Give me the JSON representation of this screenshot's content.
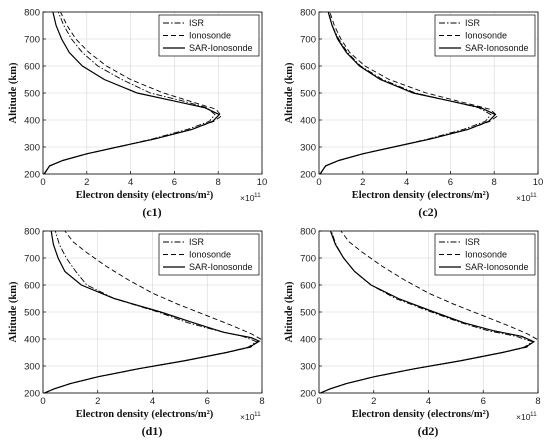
{
  "chart_data": [
    {
      "panel": "(c1)",
      "type": "line",
      "xlabel": "Electron density (electrons/m²)",
      "ylabel": "Altitude (km)",
      "x_multiplier": "×10",
      "x_multiplier_exp": "11",
      "xlim": [
        0,
        10
      ],
      "ylim": [
        200,
        800
      ],
      "xticks": [
        "0",
        "2",
        "4",
        "6",
        "8",
        "10"
      ],
      "yticks": [
        "200",
        "300",
        "400",
        "500",
        "600",
        "700",
        "800"
      ],
      "grid": true,
      "legend": "top-right",
      "series": [
        {
          "name": "ISR",
          "style": "dashdot",
          "points": [
            [
              0.05,
              200
            ],
            [
              0.3,
              230
            ],
            [
              0.9,
              250
            ],
            [
              2.0,
              275
            ],
            [
              3.4,
              300
            ],
            [
              5.0,
              330
            ],
            [
              6.6,
              365
            ],
            [
              7.6,
              395
            ],
            [
              7.85,
              420
            ],
            [
              7.5,
              445
            ],
            [
              6.4,
              470
            ],
            [
              4.9,
              500
            ],
            [
              3.6,
              550
            ],
            [
              2.5,
              600
            ],
            [
              1.8,
              650
            ],
            [
              1.3,
              700
            ],
            [
              0.95,
              750
            ],
            [
              0.7,
              800
            ]
          ]
        },
        {
          "name": "Ionosonde",
          "style": "dashed",
          "points": [
            [
              0.05,
              200
            ],
            [
              0.3,
              230
            ],
            [
              0.9,
              250
            ],
            [
              2.0,
              275
            ],
            [
              3.4,
              300
            ],
            [
              5.1,
              330
            ],
            [
              6.8,
              365
            ],
            [
              7.8,
              395
            ],
            [
              8.15,
              415
            ],
            [
              7.9,
              440
            ],
            [
              6.9,
              465
            ],
            [
              5.5,
              500
            ],
            [
              4.0,
              550
            ],
            [
              2.9,
              600
            ],
            [
              2.1,
              650
            ],
            [
              1.5,
              700
            ],
            [
              1.1,
              750
            ],
            [
              0.8,
              800
            ]
          ]
        },
        {
          "name": "SAR-Ionosonde",
          "style": "solid",
          "points": [
            [
              0.05,
              200
            ],
            [
              0.3,
              230
            ],
            [
              0.9,
              250
            ],
            [
              2.0,
              275
            ],
            [
              3.4,
              300
            ],
            [
              5.1,
              330
            ],
            [
              6.8,
              365
            ],
            [
              7.75,
              395
            ],
            [
              8.05,
              420
            ],
            [
              7.4,
              445
            ],
            [
              6.0,
              470
            ],
            [
              4.3,
              500
            ],
            [
              2.8,
              550
            ],
            [
              1.8,
              600
            ],
            [
              1.2,
              650
            ],
            [
              0.85,
              700
            ],
            [
              0.6,
              750
            ],
            [
              0.45,
              800
            ]
          ]
        }
      ]
    },
    {
      "panel": "(c2)",
      "type": "line",
      "xlabel": "Electron density (electrons/m²)",
      "ylabel": "Altitude (km)",
      "x_multiplier": "×10",
      "x_multiplier_exp": "11",
      "xlim": [
        0,
        10
      ],
      "ylim": [
        200,
        800
      ],
      "xticks": [
        "0",
        "2",
        "4",
        "6",
        "8",
        "10"
      ],
      "yticks": [
        "200",
        "300",
        "400",
        "500",
        "600",
        "700",
        "800"
      ],
      "grid": true,
      "legend": "top-right",
      "series": [
        {
          "name": "ISR",
          "style": "dashdot",
          "points": [
            [
              0.05,
              200
            ],
            [
              0.3,
              230
            ],
            [
              0.9,
              250
            ],
            [
              2.0,
              275
            ],
            [
              3.4,
              300
            ],
            [
              5.0,
              330
            ],
            [
              6.6,
              365
            ],
            [
              7.6,
              395
            ],
            [
              7.85,
              420
            ],
            [
              7.3,
              445
            ],
            [
              6.0,
              470
            ],
            [
              4.4,
              500
            ],
            [
              2.9,
              550
            ],
            [
              1.9,
              600
            ],
            [
              1.3,
              650
            ],
            [
              0.9,
              700
            ],
            [
              0.6,
              750
            ],
            [
              0.45,
              800
            ]
          ]
        },
        {
          "name": "Ionosonde",
          "style": "dashed",
          "points": [
            [
              0.05,
              200
            ],
            [
              0.3,
              230
            ],
            [
              0.9,
              250
            ],
            [
              2.0,
              275
            ],
            [
              3.4,
              300
            ],
            [
              5.1,
              330
            ],
            [
              6.8,
              365
            ],
            [
              7.8,
              395
            ],
            [
              8.15,
              415
            ],
            [
              7.8,
              440
            ],
            [
              6.6,
              465
            ],
            [
              4.9,
              500
            ],
            [
              3.2,
              550
            ],
            [
              2.1,
              600
            ],
            [
              1.4,
              650
            ],
            [
              1.0,
              700
            ],
            [
              0.7,
              750
            ],
            [
              0.5,
              800
            ]
          ]
        },
        {
          "name": "SAR-Ionosonde",
          "style": "solid",
          "points": [
            [
              0.05,
              200
            ],
            [
              0.3,
              230
            ],
            [
              0.9,
              250
            ],
            [
              2.0,
              275
            ],
            [
              3.4,
              300
            ],
            [
              5.1,
              330
            ],
            [
              6.8,
              365
            ],
            [
              7.75,
              395
            ],
            [
              8.05,
              420
            ],
            [
              7.4,
              445
            ],
            [
              6.0,
              470
            ],
            [
              4.3,
              500
            ],
            [
              2.8,
              550
            ],
            [
              1.85,
              600
            ],
            [
              1.25,
              650
            ],
            [
              0.85,
              700
            ],
            [
              0.6,
              750
            ],
            [
              0.42,
              800
            ]
          ]
        }
      ]
    },
    {
      "panel": "(d1)",
      "type": "line",
      "xlabel": "Electron density (electrons/m²)",
      "ylabel": "Altitude (km)",
      "x_multiplier": "×10",
      "x_multiplier_exp": "11",
      "xlim": [
        0,
        8
      ],
      "ylim": [
        200,
        800
      ],
      "xticks": [
        "0",
        "2",
        "4",
        "6",
        "8"
      ],
      "yticks": [
        "200",
        "300",
        "400",
        "500",
        "600",
        "700",
        "800"
      ],
      "grid": true,
      "legend": "top-right",
      "series": [
        {
          "name": "ISR",
          "style": "dashdot",
          "points": [
            [
              0.05,
              200
            ],
            [
              0.4,
              215
            ],
            [
              1.0,
              235
            ],
            [
              2.0,
              260
            ],
            [
              3.5,
              290
            ],
            [
              5.2,
              320
            ],
            [
              6.7,
              350
            ],
            [
              7.5,
              370
            ],
            [
              7.8,
              390
            ],
            [
              7.3,
              410
            ],
            [
              6.4,
              430
            ],
            [
              5.3,
              460
            ],
            [
              4.2,
              500
            ],
            [
              2.6,
              550
            ],
            [
              1.6,
              600
            ],
            [
              1.2,
              650
            ],
            [
              0.85,
              700
            ],
            [
              0.6,
              750
            ],
            [
              0.45,
              800
            ]
          ]
        },
        {
          "name": "Ionosonde",
          "style": "dashed",
          "points": [
            [
              0.05,
              200
            ],
            [
              0.4,
              215
            ],
            [
              1.0,
              235
            ],
            [
              2.0,
              260
            ],
            [
              3.5,
              290
            ],
            [
              5.2,
              320
            ],
            [
              6.7,
              350
            ],
            [
              7.6,
              370
            ],
            [
              7.95,
              400
            ],
            [
              7.6,
              420
            ],
            [
              6.9,
              450
            ],
            [
              5.9,
              490
            ],
            [
              4.9,
              530
            ],
            [
              4.0,
              570
            ],
            [
              3.1,
              620
            ],
            [
              2.3,
              670
            ],
            [
              1.6,
              720
            ],
            [
              1.1,
              760
            ],
            [
              0.8,
              800
            ]
          ]
        },
        {
          "name": "SAR-Ionosonde",
          "style": "solid",
          "points": [
            [
              0.05,
              200
            ],
            [
              0.4,
              215
            ],
            [
              1.0,
              235
            ],
            [
              2.0,
              260
            ],
            [
              3.5,
              290
            ],
            [
              5.2,
              320
            ],
            [
              6.7,
              350
            ],
            [
              7.55,
              370
            ],
            [
              7.9,
              392
            ],
            [
              7.6,
              405
            ],
            [
              6.6,
              425
            ],
            [
              5.5,
              460
            ],
            [
              4.3,
              500
            ],
            [
              2.6,
              550
            ],
            [
              1.4,
              600
            ],
            [
              0.8,
              650
            ],
            [
              0.55,
              700
            ],
            [
              0.38,
              750
            ],
            [
              0.3,
              800
            ]
          ]
        }
      ]
    },
    {
      "panel": "(d2)",
      "type": "line",
      "xlabel": "Electron density (electrons/m²)",
      "ylabel": "Altitude (km)",
      "x_multiplier": "×10",
      "x_multiplier_exp": "11",
      "xlim": [
        0,
        8
      ],
      "ylim": [
        200,
        800
      ],
      "xticks": [
        "0",
        "2",
        "4",
        "6",
        "8"
      ],
      "yticks": [
        "200",
        "300",
        "400",
        "500",
        "600",
        "700",
        "800"
      ],
      "grid": true,
      "legend": "top-right",
      "series": [
        {
          "name": "ISR",
          "style": "dashdot",
          "points": [
            [
              0.05,
              200
            ],
            [
              0.4,
              215
            ],
            [
              1.0,
              235
            ],
            [
              2.0,
              260
            ],
            [
              3.5,
              290
            ],
            [
              5.2,
              320
            ],
            [
              6.7,
              350
            ],
            [
              7.5,
              370
            ],
            [
              7.8,
              390
            ],
            [
              7.2,
              410
            ],
            [
              6.2,
              430
            ],
            [
              5.2,
              460
            ],
            [
              4.1,
              500
            ],
            [
              2.8,
              550
            ],
            [
              1.9,
              600
            ],
            [
              1.3,
              650
            ],
            [
              0.9,
              700
            ],
            [
              0.62,
              750
            ],
            [
              0.45,
              800
            ]
          ]
        },
        {
          "name": "Ionosonde",
          "style": "dashed",
          "points": [
            [
              0.05,
              200
            ],
            [
              0.4,
              215
            ],
            [
              1.0,
              235
            ],
            [
              2.0,
              260
            ],
            [
              3.5,
              290
            ],
            [
              5.2,
              320
            ],
            [
              6.7,
              350
            ],
            [
              7.6,
              370
            ],
            [
              7.95,
              400
            ],
            [
              7.6,
              420
            ],
            [
              6.9,
              450
            ],
            [
              5.9,
              490
            ],
            [
              4.9,
              530
            ],
            [
              4.0,
              570
            ],
            [
              3.1,
              620
            ],
            [
              2.3,
              670
            ],
            [
              1.6,
              720
            ],
            [
              1.1,
              760
            ],
            [
              0.8,
              800
            ]
          ]
        },
        {
          "name": "SAR-Ionosonde",
          "style": "solid",
          "points": [
            [
              0.05,
              200
            ],
            [
              0.4,
              215
            ],
            [
              1.0,
              235
            ],
            [
              2.0,
              260
            ],
            [
              3.5,
              290
            ],
            [
              5.2,
              320
            ],
            [
              6.7,
              350
            ],
            [
              7.55,
              370
            ],
            [
              7.85,
              390
            ],
            [
              7.4,
              410
            ],
            [
              6.4,
              430
            ],
            [
              5.3,
              460
            ],
            [
              4.2,
              500
            ],
            [
              2.9,
              550
            ],
            [
              1.9,
              600
            ],
            [
              1.3,
              650
            ],
            [
              0.9,
              700
            ],
            [
              0.6,
              750
            ],
            [
              0.42,
              800
            ]
          ]
        }
      ]
    }
  ]
}
